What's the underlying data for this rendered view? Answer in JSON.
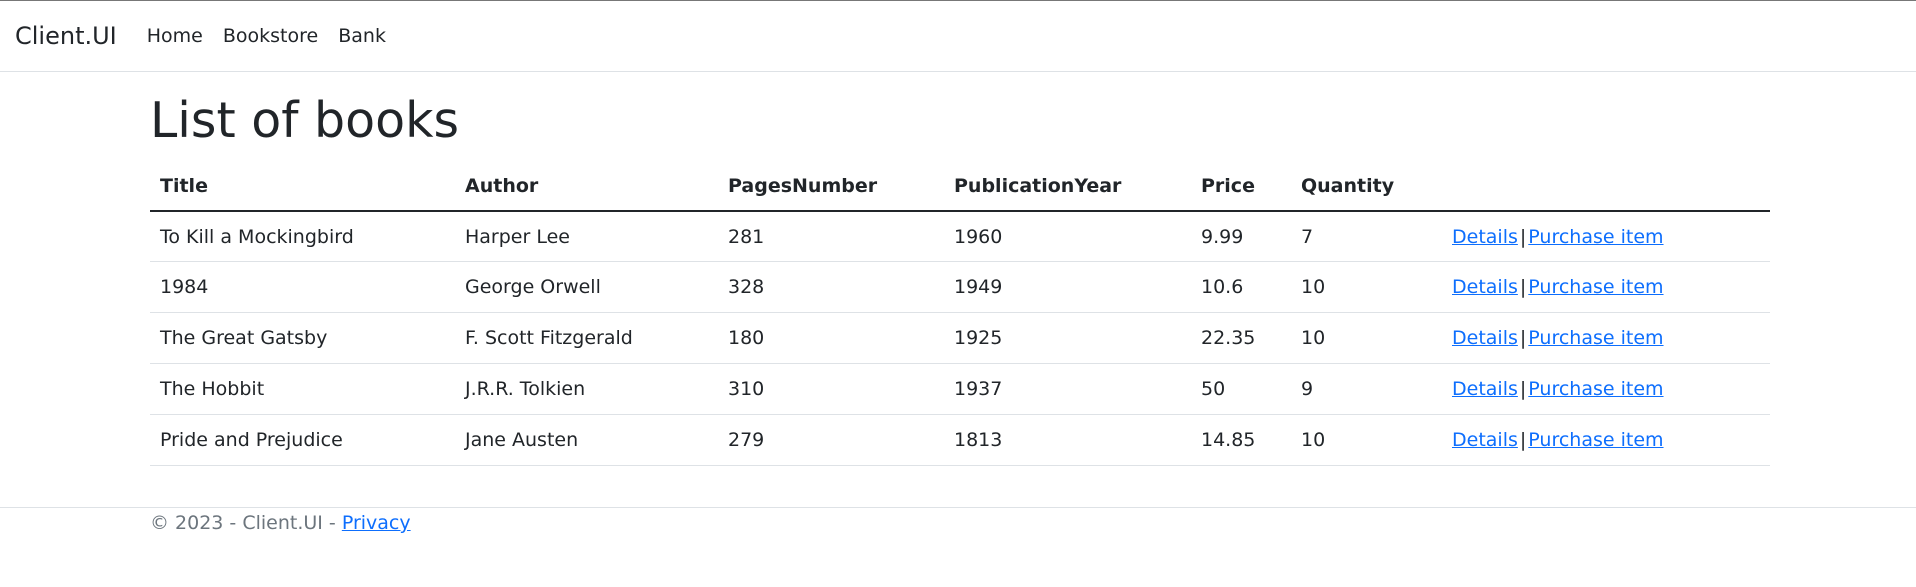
{
  "navbar": {
    "brand": "Client.UI",
    "links": [
      "Home",
      "Bookstore",
      "Bank"
    ]
  },
  "main": {
    "title": "List of books",
    "columns": [
      "Title",
      "Author",
      "PagesNumber",
      "PublicationYear",
      "Price",
      "Quantity"
    ],
    "rows": [
      {
        "title": "To Kill a Mockingbird",
        "author": "Harper Lee",
        "pages": "281",
        "year": "1960",
        "price": "9.99",
        "quantity": "7"
      },
      {
        "title": "1984",
        "author": "George Orwell",
        "pages": "328",
        "year": "1949",
        "price": "10.6",
        "quantity": "10"
      },
      {
        "title": "The Great Gatsby",
        "author": "F. Scott Fitzgerald",
        "pages": "180",
        "year": "1925",
        "price": "22.35",
        "quantity": "10"
      },
      {
        "title": "The Hobbit",
        "author": "J.R.R. Tolkien",
        "pages": "310",
        "year": "1937",
        "price": "50",
        "quantity": "9"
      },
      {
        "title": "Pride and Prejudice",
        "author": "Jane Austen",
        "pages": "279",
        "year": "1813",
        "price": "14.85",
        "quantity": "10"
      }
    ],
    "actions": {
      "details": "Details",
      "separator": "|",
      "purchase": "Purchase item"
    }
  },
  "footer": {
    "text": "© 2023 - Client.UI - ",
    "privacy": "Privacy"
  },
  "colors": {
    "link": "#0d6efd",
    "text": "#212529",
    "muted": "#6c757d",
    "border": "#dee2e6"
  }
}
